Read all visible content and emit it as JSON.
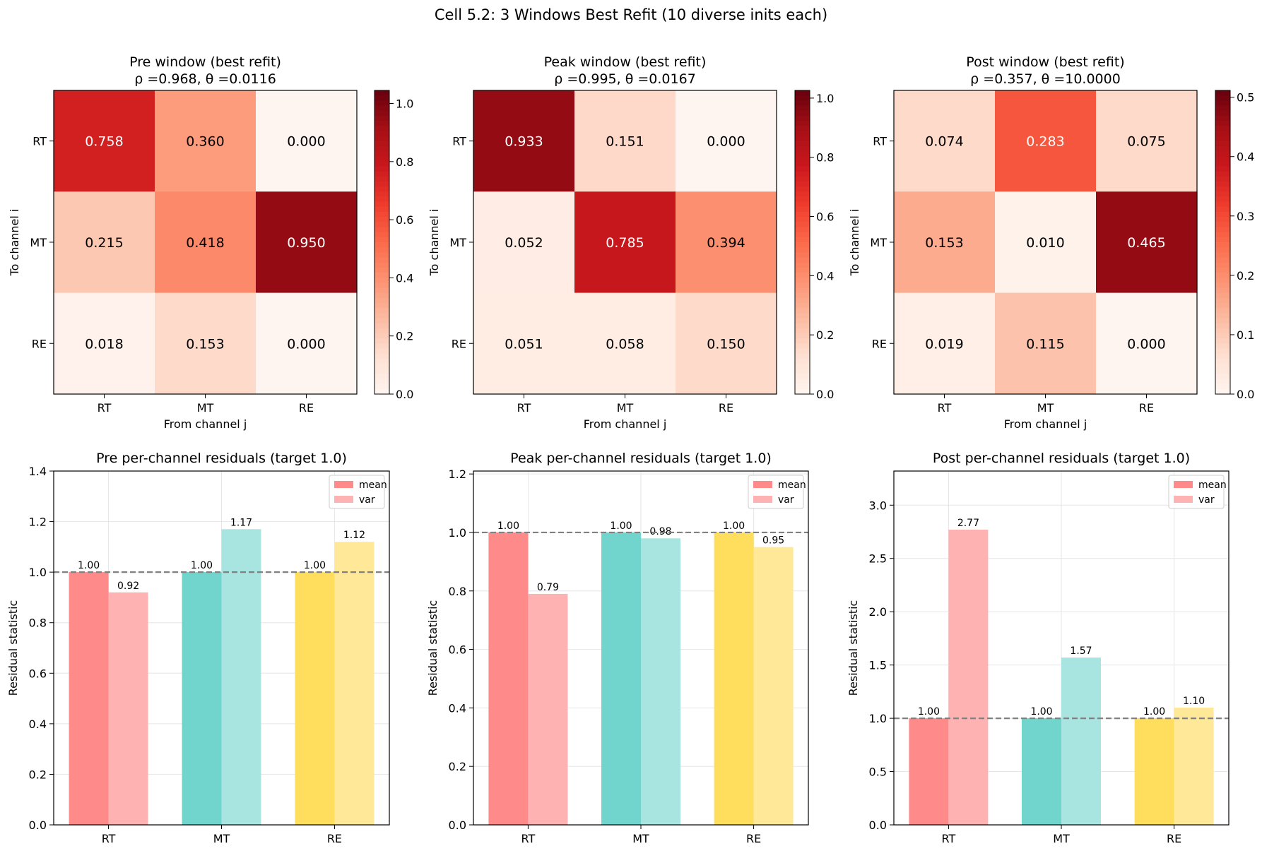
{
  "figure": {
    "title": "Cell 5.2: 3 Windows Best Refit (10 diverse inits each)"
  },
  "chart_data": [
    {
      "type": "heatmap",
      "title": "Pre window (best refit)",
      "subtitle": "ρ =0.968, θ =0.0116",
      "xlabel": "From channel j",
      "ylabel": "To channel i",
      "x_categories": [
        "RT",
        "MT",
        "RE"
      ],
      "y_categories": [
        "RT",
        "MT",
        "RE"
      ],
      "values": [
        [
          0.758,
          0.36,
          0.0
        ],
        [
          0.215,
          0.418,
          0.95
        ],
        [
          0.018,
          0.153,
          0.0
        ]
      ],
      "cell_labels": [
        [
          "0.758",
          "0.360",
          "0.000"
        ],
        [
          "0.215",
          "0.418",
          "0.950"
        ],
        [
          "0.018",
          "0.153",
          "0.000"
        ]
      ],
      "colormap": "Reds",
      "vmin": 0,
      "vmax": 1.045,
      "colorbar_ticks": [
        "0.0",
        "0.2",
        "0.4",
        "0.6",
        "0.8",
        "1.0"
      ],
      "colorbar_tick_values": [
        0,
        0.2,
        0.4,
        0.6,
        0.8,
        1.0
      ]
    },
    {
      "type": "heatmap",
      "title": "Peak window (best refit)",
      "subtitle": "ρ =0.995, θ =0.0167",
      "xlabel": "From channel j",
      "ylabel": "To channel i",
      "x_categories": [
        "RT",
        "MT",
        "RE"
      ],
      "y_categories": [
        "RT",
        "MT",
        "RE"
      ],
      "values": [
        [
          0.933,
          0.151,
          0.0
        ],
        [
          0.052,
          0.785,
          0.394
        ],
        [
          0.051,
          0.058,
          0.15
        ]
      ],
      "cell_labels": [
        [
          "0.933",
          "0.151",
          "0.000"
        ],
        [
          "0.052",
          "0.785",
          "0.394"
        ],
        [
          "0.051",
          "0.058",
          "0.150"
        ]
      ],
      "colormap": "Reds",
      "vmin": 0,
      "vmax": 1.026,
      "colorbar_ticks": [
        "0.0",
        "0.2",
        "0.4",
        "0.6",
        "0.8",
        "1.0"
      ],
      "colorbar_tick_values": [
        0,
        0.2,
        0.4,
        0.6,
        0.8,
        1.0
      ]
    },
    {
      "type": "heatmap",
      "title": "Post window (best refit)",
      "subtitle": "ρ =0.357, θ =10.0000",
      "xlabel": "From channel j",
      "ylabel": "To channel i",
      "x_categories": [
        "RT",
        "MT",
        "RE"
      ],
      "y_categories": [
        "RT",
        "MT",
        "RE"
      ],
      "values": [
        [
          0.074,
          0.283,
          0.075
        ],
        [
          0.153,
          0.01,
          0.465
        ],
        [
          0.019,
          0.115,
          0.0
        ]
      ],
      "cell_labels": [
        [
          "0.074",
          "0.283",
          "0.075"
        ],
        [
          "0.153",
          "0.010",
          "0.465"
        ],
        [
          "0.019",
          "0.115",
          "0.000"
        ]
      ],
      "colormap": "Reds",
      "vmin": 0,
      "vmax": 0.5115,
      "colorbar_ticks": [
        "0.0",
        "0.1",
        "0.2",
        "0.3",
        "0.4",
        "0.5"
      ],
      "colorbar_tick_values": [
        0,
        0.1,
        0.2,
        0.3,
        0.4,
        0.5
      ]
    },
    {
      "type": "bar",
      "title": "Pre per-channel residuals (target 1.0)",
      "ylabel": "Residual statistic",
      "categories": [
        "RT",
        "MT",
        "RE"
      ],
      "series": [
        {
          "name": "mean",
          "values": [
            1.0,
            1.0,
            1.0
          ],
          "labels": [
            "1.00",
            "1.00",
            "1.00"
          ]
        },
        {
          "name": "var",
          "values": [
            0.92,
            1.17,
            1.12
          ],
          "labels": [
            "0.92",
            "1.17",
            "1.12"
          ]
        }
      ],
      "mean_colors": [
        "#ff8a8a",
        "#72d5cd",
        "#ffde5e"
      ],
      "var_colors": [
        "#ffb2b2",
        "#a8e5e1",
        "#ffe999"
      ],
      "legend_colors": [
        "#ff8a8a",
        "#ffb2b2"
      ],
      "ylim": [
        0,
        1.4
      ],
      "yticks": [
        "0.0",
        "0.2",
        "0.4",
        "0.6",
        "0.8",
        "1.0",
        "1.2",
        "1.4"
      ],
      "ytick_values": [
        0,
        0.2,
        0.4,
        0.6,
        0.8,
        1.0,
        1.2,
        1.4
      ],
      "target_line": 1.0,
      "legend_position": "upper right",
      "grid": true
    },
    {
      "type": "bar",
      "title": "Peak per-channel residuals (target 1.0)",
      "ylabel": "Residual statistic",
      "categories": [
        "RT",
        "MT",
        "RE"
      ],
      "series": [
        {
          "name": "mean",
          "values": [
            1.0,
            1.0,
            1.0
          ],
          "labels": [
            "1.00",
            "1.00",
            "1.00"
          ]
        },
        {
          "name": "var",
          "values": [
            0.79,
            0.98,
            0.95
          ],
          "labels": [
            "0.79",
            "0.98",
            "0.95"
          ]
        }
      ],
      "mean_colors": [
        "#ff8a8a",
        "#72d5cd",
        "#ffde5e"
      ],
      "var_colors": [
        "#ffb2b2",
        "#a8e5e1",
        "#ffe999"
      ],
      "legend_colors": [
        "#ff8a8a",
        "#ffb2b2"
      ],
      "ylim": [
        0,
        1.21
      ],
      "yticks": [
        "0.0",
        "0.2",
        "0.4",
        "0.6",
        "0.8",
        "1.0",
        "1.2"
      ],
      "ytick_values": [
        0,
        0.2,
        0.4,
        0.6,
        0.8,
        1.0,
        1.2
      ],
      "target_line": 1.0,
      "legend_position": "upper right",
      "grid": true
    },
    {
      "type": "bar",
      "title": "Post per-channel residuals (target 1.0)",
      "ylabel": "Residual statistic",
      "categories": [
        "RT",
        "MT",
        "RE"
      ],
      "series": [
        {
          "name": "mean",
          "values": [
            1.0,
            1.0,
            1.0
          ],
          "labels": [
            "1.00",
            "1.00",
            "1.00"
          ]
        },
        {
          "name": "var",
          "values": [
            2.77,
            1.57,
            1.1
          ],
          "labels": [
            "2.77",
            "1.57",
            "1.10"
          ]
        }
      ],
      "mean_colors": [
        "#ff8a8a",
        "#72d5cd",
        "#ffde5e"
      ],
      "var_colors": [
        "#ffb2b2",
        "#a8e5e1",
        "#ffe999"
      ],
      "legend_colors": [
        "#ff8a8a",
        "#ffb2b2"
      ],
      "ylim": [
        0,
        3.32
      ],
      "yticks": [
        "0.0",
        "0.5",
        "1.0",
        "1.5",
        "2.0",
        "2.5",
        "3.0"
      ],
      "ytick_values": [
        0,
        0.5,
        1.0,
        1.5,
        2.0,
        2.5,
        3.0
      ],
      "target_line": 1.0,
      "legend_position": "upper right",
      "grid": true
    }
  ]
}
